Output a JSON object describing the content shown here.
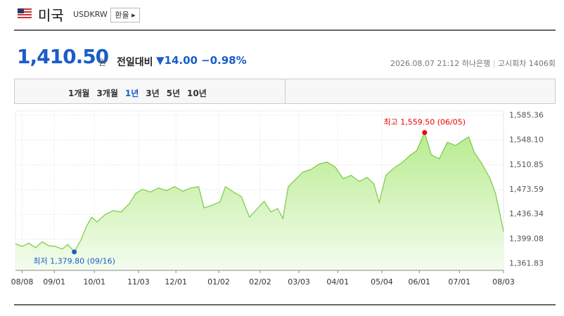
{
  "header": {
    "title": "미국",
    "code": "USDKRW",
    "button": "환율"
  },
  "quote": {
    "price": "1,410.50",
    "unit": "원",
    "change_label": "전일대비",
    "change": "14.00",
    "change_pct": "−0.98%",
    "datetime": "2026.08.07 21:12",
    "bank": "하나은행",
    "round": "고시회차 1406회"
  },
  "tabs": {
    "items": [
      "1개월",
      "3개월",
      "1년",
      "3년",
      "5년",
      "10년"
    ],
    "active": 2
  },
  "chart_data": {
    "type": "area",
    "x": [
      -5,
      0,
      5,
      10,
      15,
      20,
      25,
      30,
      34,
      39,
      44,
      48,
      52,
      56,
      62,
      68,
      74,
      80,
      85,
      90,
      96,
      102,
      108,
      114,
      120,
      126,
      132,
      136,
      142,
      148,
      152,
      158,
      164,
      170,
      176,
      181,
      186,
      191,
      195,
      199,
      204,
      210,
      216,
      222,
      228,
      234,
      240,
      246,
      252,
      258,
      263,
      267,
      272,
      278,
      284,
      290,
      295,
      301,
      306,
      312,
      318,
      324,
      330,
      334,
      338,
      344,
      350,
      354,
      357,
      360
    ],
    "series": [
      {
        "name": "USDKRW",
        "color": "#7ac943",
        "values": [
          1392,
          1388,
          1393,
          1386,
          1395,
          1389,
          1388,
          1384,
          1391,
          1379.8,
          1398,
          1418,
          1432,
          1425,
          1436,
          1442,
          1440,
          1452,
          1468,
          1474,
          1470,
          1476,
          1472,
          1478,
          1471,
          1476,
          1478,
          1446,
          1450,
          1455,
          1478,
          1470,
          1463,
          1432,
          1445,
          1456,
          1440,
          1445,
          1430,
          1478,
          1488,
          1500,
          1504,
          1512,
          1515,
          1508,
          1490,
          1495,
          1486,
          1492,
          1482,
          1454,
          1495,
          1506,
          1514,
          1525,
          1532,
          1559.5,
          1526,
          1520,
          1545,
          1540,
          1548,
          1553,
          1530,
          1512,
          1490,
          1468,
          1440,
          1410.5
        ]
      }
    ],
    "xlim": [
      -5,
      360
    ],
    "xticks": [
      {
        "value": 0,
        "label": "08/08"
      },
      {
        "value": 24,
        "label": "09/01"
      },
      {
        "value": 54,
        "label": "10/01"
      },
      {
        "value": 87,
        "label": "11/03"
      },
      {
        "value": 115,
        "label": "12/01"
      },
      {
        "value": 147,
        "label": "01/02"
      },
      {
        "value": 178,
        "label": "02/02"
      },
      {
        "value": 207,
        "label": "03/03"
      },
      {
        "value": 236,
        "label": "04/01"
      },
      {
        "value": 269,
        "label": "05/04"
      },
      {
        "value": 297,
        "label": "06/01"
      },
      {
        "value": 327,
        "label": "07/01"
      },
      {
        "value": 360,
        "label": "08/03"
      }
    ],
    "ylim": [
      1352,
      1592
    ],
    "yticks": [
      {
        "value": 1361.83,
        "label": "1,361.83"
      },
      {
        "value": 1399.08,
        "label": "1,399.08"
      },
      {
        "value": 1436.34,
        "label": "1,436.34"
      },
      {
        "value": 1473.59,
        "label": "1,473.59"
      },
      {
        "value": 1510.85,
        "label": "1,510.85"
      },
      {
        "value": 1548.1,
        "label": "1,548.10"
      },
      {
        "value": 1585.36,
        "label": "1,585.36"
      }
    ],
    "grid": true,
    "annotations": {
      "high": "최고 1,559.50 (06/05)",
      "low": "최저 1,379.80 (09/16)"
    }
  }
}
